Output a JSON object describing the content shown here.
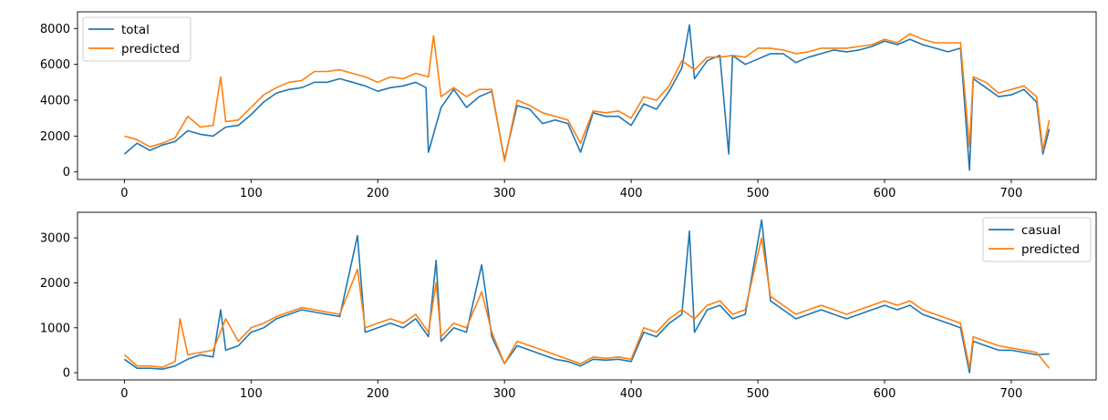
{
  "chart_data": [
    {
      "type": "line",
      "title": "",
      "xlabel": "",
      "ylabel": "",
      "xlim": [
        -37,
        767
      ],
      "ylim": [
        -420,
        8930
      ],
      "xticks": [
        0,
        100,
        200,
        300,
        400,
        500,
        600,
        700
      ],
      "yticks": [
        0,
        2000,
        4000,
        6000,
        8000
      ],
      "legend_position": "top-left",
      "grid": false,
      "series": [
        {
          "name": "total",
          "color": "#1f77b4",
          "x": [
            0,
            10,
            20,
            30,
            40,
            50,
            60,
            70,
            80,
            90,
            100,
            110,
            120,
            130,
            140,
            150,
            160,
            170,
            180,
            190,
            200,
            210,
            220,
            230,
            238,
            240,
            250,
            260,
            270,
            280,
            290,
            300,
            310,
            320,
            330,
            340,
            350,
            360,
            370,
            380,
            390,
            400,
            410,
            420,
            430,
            440,
            446,
            450,
            460,
            470,
            477,
            480,
            490,
            500,
            510,
            520,
            530,
            540,
            550,
            560,
            570,
            580,
            590,
            600,
            610,
            620,
            630,
            640,
            650,
            660,
            667,
            670,
            680,
            690,
            700,
            710,
            720,
            725,
            730
          ],
          "values": [
            1000,
            1600,
            1200,
            1500,
            1700,
            2300,
            2100,
            2000,
            2500,
            2600,
            3200,
            3900,
            4400,
            4600,
            4700,
            5000,
            5000,
            5200,
            5000,
            4800,
            4500,
            4700,
            4800,
            5000,
            4700,
            1100,
            3600,
            4600,
            3600,
            4200,
            4500,
            700,
            3700,
            3500,
            2700,
            2900,
            2700,
            1100,
            3300,
            3100,
            3100,
            2600,
            3800,
            3500,
            4500,
            5800,
            8200,
            5200,
            6200,
            6500,
            1000,
            6500,
            6000,
            6300,
            6600,
            6600,
            6100,
            6400,
            6600,
            6800,
            6700,
            6800,
            7000,
            7300,
            7100,
            7400,
            7100,
            6900,
            6700,
            6900,
            100,
            5200,
            4700,
            4200,
            4300,
            4600,
            3900,
            1000,
            2400
          ]
        },
        {
          "name": "predicted",
          "color": "#ff7f0e",
          "x": [
            0,
            10,
            20,
            30,
            40,
            50,
            60,
            70,
            76,
            80,
            90,
            100,
            110,
            120,
            130,
            140,
            150,
            160,
            170,
            180,
            190,
            200,
            210,
            220,
            230,
            240,
            244,
            250,
            260,
            270,
            280,
            290,
            300,
            310,
            320,
            330,
            340,
            350,
            360,
            370,
            380,
            390,
            400,
            410,
            420,
            430,
            440,
            450,
            460,
            470,
            480,
            490,
            500,
            510,
            520,
            530,
            540,
            550,
            560,
            570,
            580,
            590,
            600,
            610,
            620,
            630,
            640,
            650,
            660,
            667,
            670,
            680,
            690,
            700,
            710,
            720,
            725,
            730
          ],
          "values": [
            2000,
            1800,
            1400,
            1600,
            1900,
            3100,
            2500,
            2600,
            5300,
            2800,
            2900,
            3600,
            4300,
            4700,
            5000,
            5100,
            5600,
            5600,
            5700,
            5500,
            5300,
            5000,
            5300,
            5200,
            5500,
            5300,
            7600,
            4200,
            4700,
            4200,
            4600,
            4600,
            600,
            4000,
            3700,
            3300,
            3100,
            2900,
            1600,
            3400,
            3300,
            3400,
            3000,
            4200,
            4000,
            4800,
            6200,
            5700,
            6400,
            6400,
            6500,
            6400,
            6900,
            6900,
            6800,
            6600,
            6700,
            6900,
            6900,
            6900,
            7000,
            7100,
            7400,
            7200,
            7700,
            7400,
            7200,
            7200,
            7200,
            1400,
            5300,
            5000,
            4400,
            4600,
            4800,
            4200,
            1200,
            2900
          ]
        }
      ]
    },
    {
      "type": "line",
      "title": "",
      "xlabel": "",
      "ylabel": "",
      "xlim": [
        -37,
        767
      ],
      "ylim": [
        -160,
        3570
      ],
      "xticks": [
        0,
        100,
        200,
        300,
        400,
        500,
        600,
        700
      ],
      "yticks": [
        0,
        1000,
        2000,
        3000
      ],
      "legend_position": "top-right",
      "grid": false,
      "series": [
        {
          "name": "casual",
          "color": "#1f77b4",
          "x": [
            0,
            10,
            20,
            30,
            40,
            50,
            60,
            70,
            76,
            80,
            90,
            100,
            110,
            120,
            130,
            140,
            150,
            160,
            170,
            184,
            190,
            200,
            210,
            220,
            230,
            240,
            246,
            250,
            260,
            270,
            282,
            290,
            300,
            310,
            320,
            330,
            340,
            350,
            360,
            370,
            380,
            390,
            400,
            410,
            420,
            430,
            440,
            446,
            450,
            460,
            470,
            480,
            490,
            503,
            510,
            520,
            530,
            540,
            550,
            560,
            570,
            580,
            590,
            600,
            610,
            620,
            630,
            640,
            650,
            660,
            667,
            670,
            680,
            690,
            700,
            710,
            720,
            730
          ],
          "values": [
            300,
            100,
            100,
            80,
            150,
            300,
            400,
            350,
            1400,
            500,
            600,
            900,
            1000,
            1200,
            1300,
            1400,
            1350,
            1300,
            1250,
            3050,
            900,
            1000,
            1100,
            1000,
            1200,
            800,
            2500,
            700,
            1000,
            900,
            2400,
            800,
            200,
            600,
            500,
            400,
            300,
            250,
            150,
            300,
            280,
            300,
            250,
            900,
            800,
            1100,
            1300,
            3150,
            900,
            1400,
            1500,
            1200,
            1300,
            3400,
            1600,
            1400,
            1200,
            1300,
            1400,
            1300,
            1200,
            1300,
            1400,
            1500,
            1400,
            1500,
            1300,
            1200,
            1100,
            1000,
            0,
            700,
            600,
            500,
            500,
            450,
            400,
            420
          ]
        },
        {
          "name": "predicted",
          "color": "#ff7f0e",
          "x": [
            0,
            10,
            20,
            30,
            40,
            44,
            50,
            60,
            70,
            80,
            90,
            100,
            110,
            120,
            130,
            140,
            150,
            160,
            170,
            184,
            190,
            200,
            210,
            220,
            230,
            240,
            246,
            250,
            260,
            270,
            282,
            290,
            300,
            310,
            320,
            330,
            340,
            350,
            360,
            370,
            380,
            390,
            400,
            410,
            420,
            430,
            440,
            450,
            460,
            470,
            480,
            490,
            503,
            510,
            520,
            530,
            540,
            550,
            560,
            570,
            580,
            590,
            600,
            610,
            620,
            630,
            640,
            650,
            660,
            667,
            670,
            680,
            690,
            700,
            710,
            720,
            730
          ],
          "values": [
            400,
            150,
            150,
            120,
            250,
            1200,
            400,
            450,
            500,
            1200,
            700,
            1000,
            1100,
            1250,
            1350,
            1450,
            1400,
            1350,
            1300,
            2300,
            1000,
            1100,
            1200,
            1100,
            1300,
            900,
            2000,
            800,
            1100,
            1000,
            1800,
            900,
            200,
            700,
            600,
            500,
            400,
            300,
            200,
            350,
            320,
            350,
            300,
            1000,
            900,
            1200,
            1400,
            1200,
            1500,
            1600,
            1300,
            1400,
            3000,
            1700,
            1500,
            1300,
            1400,
            1500,
            1400,
            1300,
            1400,
            1500,
            1600,
            1500,
            1600,
            1400,
            1300,
            1200,
            1100,
            100,
            800,
            700,
            600,
            550,
            500,
            450,
            100
          ]
        }
      ]
    }
  ]
}
